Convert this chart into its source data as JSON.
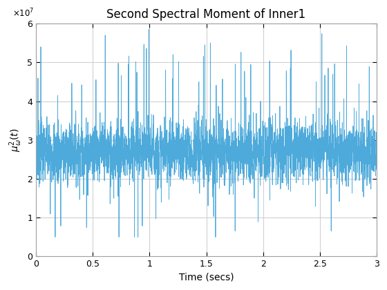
{
  "title": "Second Spectral Moment of Inner1",
  "xlabel": "Time (secs)",
  "ylabel": "$\\mu_{\\omega}^{2}(t)$",
  "xlim": [
    0,
    3
  ],
  "ylim": [
    0,
    60000000.0
  ],
  "yticks": [
    0,
    10000000.0,
    20000000.0,
    30000000.0,
    40000000.0,
    50000000.0,
    60000000.0
  ],
  "xticks": [
    0,
    0.5,
    1.0,
    1.5,
    2.0,
    2.5,
    3.0
  ],
  "line_color": "#4DAADB",
  "line_width": 0.6,
  "n_points": 3000,
  "mean": 27000000.0,
  "base_std": 4000000.0,
  "spike_prob": 0.015,
  "spike_amplitude": 28000000.0,
  "dip_prob": 0.008,
  "dip_depth": 20000000.0,
  "seed": 7,
  "background_color": "#ffffff",
  "grid_color": "#d0d0d0",
  "title_fontsize": 12,
  "label_fontsize": 10,
  "tick_fontsize": 9
}
